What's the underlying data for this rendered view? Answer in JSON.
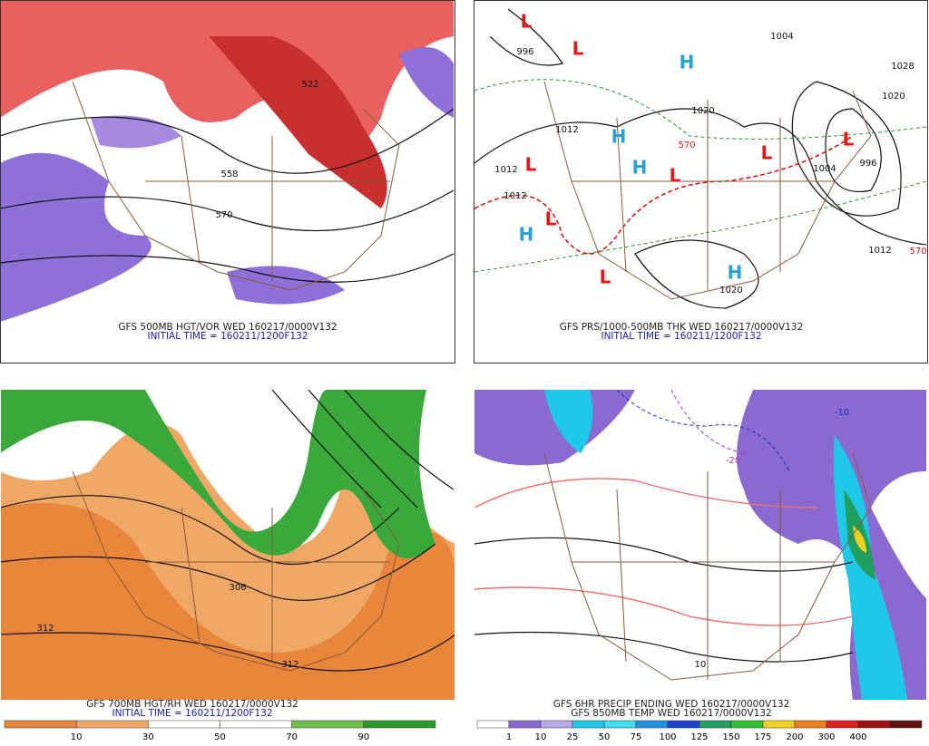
{
  "panels": [
    {
      "caption": "GFS 500MB HGT/VOR WED 160217/0000V132",
      "initial": "INITIAL TIME = 160211/1200F132",
      "labels": [
        {
          "text": "522",
          "color": "#111"
        },
        {
          "text": "558",
          "color": "#111"
        },
        {
          "text": "570",
          "color": "#111"
        }
      ]
    },
    {
      "caption": "GFS PRS/1000-500MB THK WED 160217/0000V132",
      "initial": "INITIAL TIME = 160211/1200F132",
      "labels": [
        {
          "text": "L",
          "color": "#e01818"
        },
        {
          "text": "L",
          "color": "#e01818"
        },
        {
          "text": "L",
          "color": "#e01818"
        },
        {
          "text": "L",
          "color": "#e01818"
        },
        {
          "text": "L",
          "color": "#e01818"
        },
        {
          "text": "L",
          "color": "#e01818"
        },
        {
          "text": "L",
          "color": "#e01818"
        },
        {
          "text": "L",
          "color": "#e01818"
        },
        {
          "text": "H",
          "color": "#2aa0d8"
        },
        {
          "text": "H",
          "color": "#2aa0d8"
        },
        {
          "text": "H",
          "color": "#2aa0d8"
        },
        {
          "text": "H",
          "color": "#2aa0d8"
        },
        {
          "text": "H",
          "color": "#2aa0d8"
        },
        {
          "text": "1020",
          "color": "#111"
        },
        {
          "text": "1020",
          "color": "#111"
        },
        {
          "text": "1012",
          "color": "#111"
        },
        {
          "text": "1012",
          "color": "#111"
        },
        {
          "text": "1012",
          "color": "#111"
        },
        {
          "text": "1012",
          "color": "#111"
        },
        {
          "text": "1004",
          "color": "#111"
        },
        {
          "text": "1004",
          "color": "#111"
        },
        {
          "text": "996",
          "color": "#111"
        },
        {
          "text": "996",
          "color": "#111"
        },
        {
          "text": "1028",
          "color": "#111"
        },
        {
          "text": "1020",
          "color": "#111"
        },
        {
          "text": "570",
          "color": "#e01818"
        },
        {
          "text": "570",
          "color": "#e01818"
        }
      ]
    },
    {
      "caption": "GFS 700MB HGT/RH WED 160217/0000V132",
      "initial": "INITIAL TIME = 160211/1200F132",
      "labels": [
        {
          "text": "306",
          "color": "#111"
        },
        {
          "text": "312",
          "color": "#111"
        },
        {
          "text": "312",
          "color": "#111"
        }
      ],
      "colorbar": {
        "colors": [
          "#e8863c",
          "#f0a866",
          "#ffffff",
          "#ffffff",
          "#6cc04a",
          "#2a9a2a"
        ],
        "labels": [
          "10",
          "30",
          "50",
          "70",
          "90"
        ]
      }
    },
    {
      "caption": "GFS 6HR PRECIP ENDING WED 160217/0000V132",
      "initial": "GFS 850MB TEMP WED 160217/0000V132",
      "labels": [
        {
          "text": "-20",
          "color": "#b030b0"
        },
        {
          "text": "-10",
          "color": "#2030c0"
        },
        {
          "text": "10",
          "color": "#111"
        }
      ],
      "colorbar": {
        "colors": [
          "#ffffff",
          "#8a6ad0",
          "#b8a8e8",
          "#20c8e8",
          "#40e0f0",
          "#2090e0",
          "#2040d0",
          "#20a060",
          "#30c030",
          "#f0d020",
          "#f08020",
          "#e02020",
          "#a01010",
          "#601010"
        ],
        "labels": [
          "1",
          "10",
          "25",
          "50",
          "75",
          "100",
          "125",
          "150",
          "175",
          "200",
          "300",
          "400"
        ]
      }
    }
  ]
}
